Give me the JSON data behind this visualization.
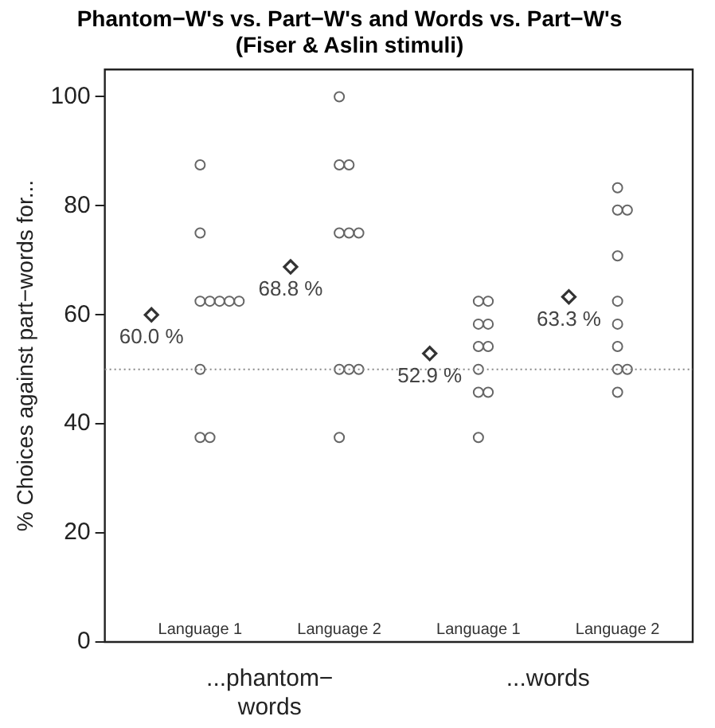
{
  "chart_data": {
    "type": "scatter",
    "title": "Phantom−W's vs. Part−W's and Words vs. Part−W's",
    "subtitle": "(Fiser & Aslin stimuli)",
    "ylabel": "% Choices against part−words for...",
    "categories": [
      "Language 1",
      "Language 2",
      "Language 1",
      "Language 2"
    ],
    "ylim": [
      0,
      105
    ],
    "yticks": [
      0,
      20,
      40,
      60,
      80,
      100
    ],
    "grid": false,
    "legend": false,
    "series": [
      {
        "marker": "diamond",
        "color": "#333333",
        "values": [
          60,
          68.8,
          52.9,
          63.3
        ],
        "value_labels": [
          "60.0 %",
          "68.8 %",
          "52.9 %",
          "63.3 %"
        ]
      },
      {
        "marker": "circle",
        "color": "#666666",
        "values": [
          87.5,
          100,
          62.5,
          83.3
        ]
      },
      {
        "marker": "circle",
        "color": "#666666",
        "values": [
          75,
          87.5,
          62.5,
          79.2
        ]
      },
      {
        "marker": "circle",
        "color": "#666666",
        "values": [
          62.5,
          87.5,
          58.3,
          79.2
        ]
      },
      {
        "marker": "circle",
        "color": "#666666",
        "values": [
          62.5,
          75,
          58.3,
          70.8
        ]
      },
      {
        "marker": "circle",
        "color": "#666666",
        "values": [
          62.5,
          75,
          54.2,
          62.5
        ]
      },
      {
        "marker": "circle",
        "color": "#666666",
        "values": [
          62.5,
          75,
          54.2,
          58.3
        ]
      },
      {
        "marker": "circle",
        "color": "#666666",
        "values": [
          62.5,
          50,
          50,
          54.2
        ]
      },
      {
        "marker": "circle",
        "color": "#666666",
        "values": [
          50,
          50,
          45.8,
          50
        ]
      },
      {
        "marker": "circle",
        "color": "#666666",
        "values": [
          37.5,
          50,
          45.8,
          50
        ]
      },
      {
        "marker": "circle",
        "color": "#666666",
        "values": [
          37.5,
          37.5,
          37.5,
          45.8
        ]
      }
    ],
    "ref_lines": [
      {
        "axis": "y",
        "value": 50,
        "line_style": "dotted",
        "color": "#888888"
      }
    ],
    "annotations": [
      "...phantom−words",
      "...words"
    ]
  }
}
